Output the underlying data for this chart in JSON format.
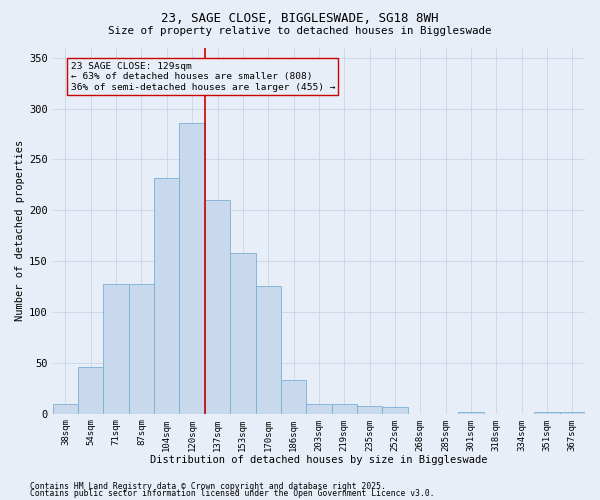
{
  "title1": "23, SAGE CLOSE, BIGGLESWADE, SG18 8WH",
  "title2": "Size of property relative to detached houses in Biggleswade",
  "xlabel": "Distribution of detached houses by size in Biggleswade",
  "ylabel": "Number of detached properties",
  "bar_labels": [
    "38sqm",
    "54sqm",
    "71sqm",
    "87sqm",
    "104sqm",
    "120sqm",
    "137sqm",
    "153sqm",
    "170sqm",
    "186sqm",
    "203sqm",
    "219sqm",
    "235sqm",
    "252sqm",
    "268sqm",
    "285sqm",
    "301sqm",
    "318sqm",
    "334sqm",
    "351sqm",
    "367sqm"
  ],
  "bar_values": [
    10,
    46,
    128,
    128,
    232,
    286,
    210,
    158,
    126,
    33,
    10,
    10,
    8,
    7,
    0,
    0,
    2,
    0,
    0,
    2,
    2
  ],
  "bar_color": "#c9d9ed",
  "bar_edge_color": "#7aafd4",
  "vline_color": "#cc0000",
  "vline_x_index": 5.5,
  "annotation_text": "23 SAGE CLOSE: 129sqm\n← 63% of detached houses are smaller (808)\n36% of semi-detached houses are larger (455) →",
  "annotation_box_color": "#cc0000",
  "ylim": [
    0,
    360
  ],
  "yticks": [
    0,
    50,
    100,
    150,
    200,
    250,
    300,
    350
  ],
  "grid_color": "#cdd8e8",
  "background_color": "#e8eef8",
  "footer1": "Contains HM Land Registry data © Crown copyright and database right 2025.",
  "footer2": "Contains public sector information licensed under the Open Government Licence v3.0."
}
